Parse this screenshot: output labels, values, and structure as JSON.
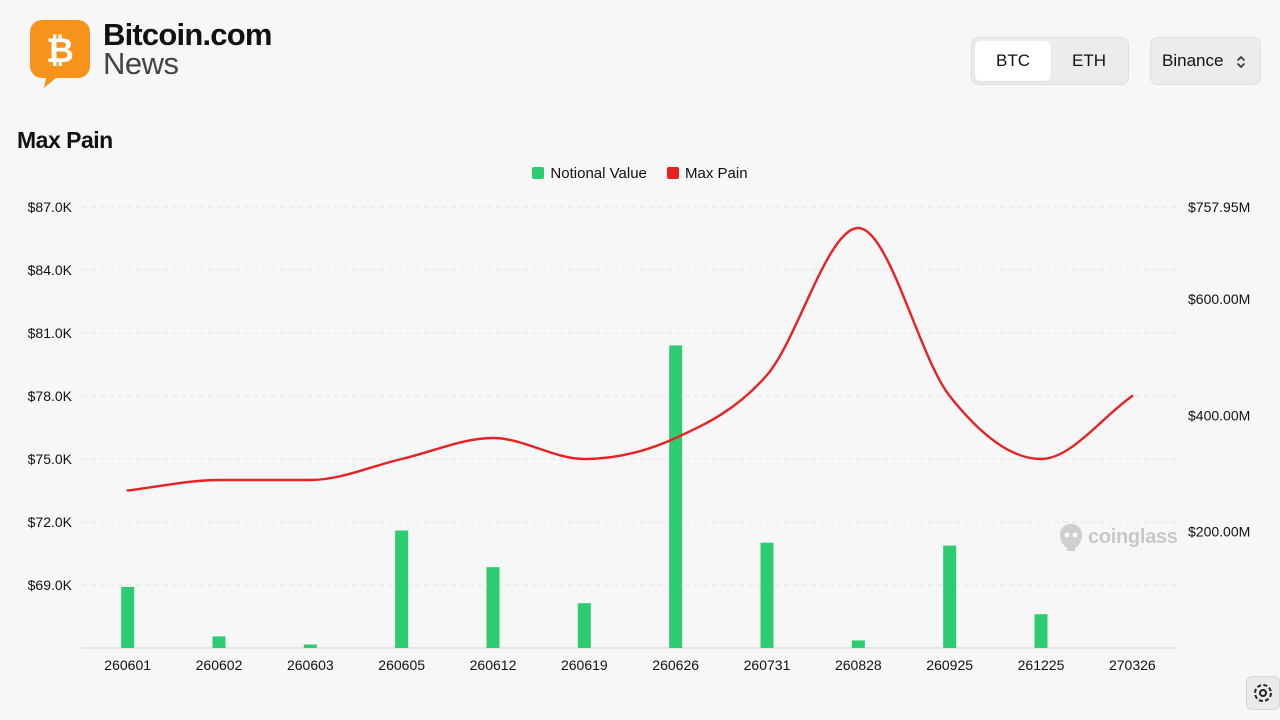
{
  "header": {
    "logo_line1": "Bitcoin.com",
    "logo_line2": "News",
    "logo_symbol": "₿",
    "brand_color": "#f7931a"
  },
  "controls": {
    "asset_tabs": [
      {
        "label": "BTC",
        "active": true
      },
      {
        "label": "ETH",
        "active": false
      }
    ],
    "exchange_select": {
      "value": "Binance"
    }
  },
  "title": "Max Pain",
  "watermark": "coinglass",
  "chart_data": {
    "type": "bar",
    "categories": [
      "260601",
      "260602",
      "260603",
      "260605",
      "260612",
      "260619",
      "260626",
      "260731",
      "260828",
      "260925",
      "261225",
      "270326"
    ],
    "series": [
      {
        "name": "Notional Value",
        "type": "bar",
        "axis": "right",
        "color": "#2ecc71",
        "values": [
          105000000,
          20000000,
          6000000,
          202000000,
          139000000,
          77000000,
          520000000,
          181000000,
          13000000,
          176000000,
          58000000,
          0
        ]
      },
      {
        "name": "Max Pain",
        "type": "line",
        "axis": "left",
        "color": "#e82222",
        "values": [
          73500,
          74000,
          74000,
          75000,
          76000,
          75000,
          76000,
          79000,
          86000,
          78000,
          75000,
          78000
        ]
      }
    ],
    "left_axis": {
      "ticks": [
        "$87.0K",
        "$84.0K",
        "$81.0K",
        "$78.0K",
        "$75.0K",
        "$72.0K",
        "$69.0K"
      ],
      "ylim": [
        66000,
        87000
      ]
    },
    "right_axis": {
      "ticks": [
        "$757.95M",
        "$600.00M",
        "$400.00M",
        "$200.00M"
      ],
      "ylim": [
        0,
        757950000
      ]
    },
    "legend_position": "top-center",
    "grid": true
  }
}
